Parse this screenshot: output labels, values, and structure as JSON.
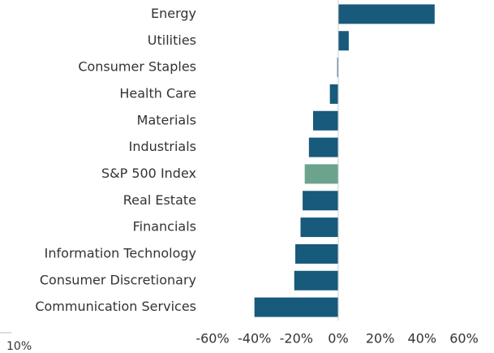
{
  "chart_data": {
    "type": "hbar",
    "categories": [
      "Energy",
      "Utilities",
      "Consumer Staples",
      "Health Care",
      "Materials",
      "Industrials",
      "S&P 500 Index",
      "Real Estate",
      "Financials",
      "Information Technology",
      "Consumer Discretionary",
      "Communication Services"
    ],
    "values": [
      46,
      5,
      -0.5,
      -4,
      -12,
      -14,
      -16,
      -17,
      -18,
      -20.5,
      -21,
      -40
    ],
    "colors": [
      "#175a7b",
      "#175a7b",
      "#175a7b",
      "#175a7b",
      "#175a7b",
      "#175a7b",
      "#6ba38c",
      "#175a7b",
      "#175a7b",
      "#175a7b",
      "#175a7b",
      "#175a7b"
    ],
    "xlim": [
      -60,
      60
    ],
    "xticks": [
      {
        "value": -60,
        "label": "-60%"
      },
      {
        "value": -40,
        "label": "-40%"
      },
      {
        "value": -20,
        "label": "-20%"
      },
      {
        "value": 0,
        "label": "0%"
      },
      {
        "value": 20,
        "label": "20%"
      },
      {
        "value": 40,
        "label": "40%"
      },
      {
        "value": 60,
        "label": "60%"
      }
    ],
    "corner_label": "10%"
  }
}
